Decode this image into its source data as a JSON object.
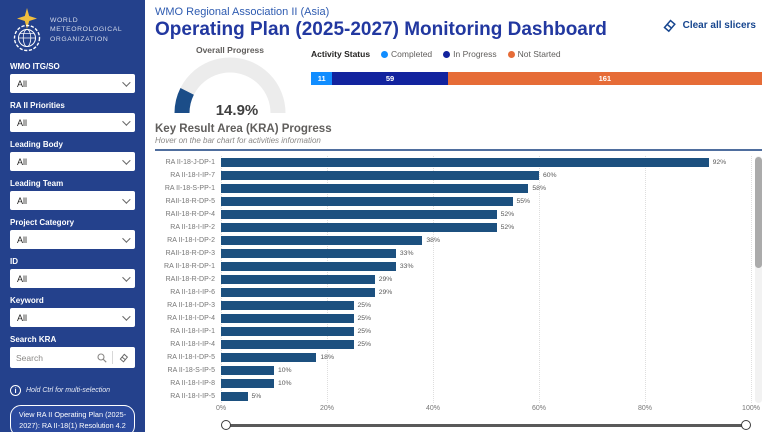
{
  "sidebar": {
    "logo_lines": [
      "WORLD",
      "METEOROLOGICAL",
      "ORGANIZATION"
    ],
    "filters": [
      {
        "label": "WMO ITG/SO",
        "value": "All"
      },
      {
        "label": "RA II Priorities",
        "value": "All"
      },
      {
        "label": "Leading Body",
        "value": "All"
      },
      {
        "label": "Leading Team",
        "value": "All"
      },
      {
        "label": "Project Category",
        "value": "All"
      },
      {
        "label": "ID",
        "value": "All"
      },
      {
        "label": "Keyword",
        "value": "All"
      }
    ],
    "search": {
      "label": "Search KRA",
      "placeholder": "Search"
    },
    "hint": "Hold Ctrl for multi-selection",
    "plan_button": "View RA II Operating Plan (2025-2027): RA II-18(1) Resolution 4.2"
  },
  "header": {
    "subtitle": "WMO Regional Association II (Asia)",
    "title": "Operating Plan (2025-2027) Monitoring Dashboard",
    "clear_slicers": "Clear all slicers"
  },
  "overall_progress": {
    "title": "Overall Progress",
    "value_label": "14.9%",
    "percent": 14.9
  },
  "activity_status": {
    "label": "Activity Status",
    "legend": [
      {
        "name": "Completed",
        "color": "#118DFF",
        "count": 11
      },
      {
        "name": "In Progress",
        "color": "#12239E",
        "count": 59
      },
      {
        "name": "Not Started",
        "color": "#E66C37",
        "count": 161
      }
    ]
  },
  "kra_section": {
    "title": "Key Result Area (KRA) Progress",
    "subtitle": "Hover on the bar chart for activities information"
  },
  "chart_data": {
    "type": "bar",
    "orientation": "horizontal",
    "title": "Key Result Area (KRA) Progress",
    "categories": [
      "RA II-18-J-DP-1",
      "RA II-18-I-IP-7",
      "RA II-18-S-PP-1",
      "RAII-18-R-DP-5",
      "RAII-18-R-DP-4",
      "RA II-18-I-IP-2",
      "RA II-18-I-DP-2",
      "RAII-18-R-DP-3",
      "RA II-18-R-DP-1",
      "RAII-18-R-DP-2",
      "RA II-18-I-IP-6",
      "RA II-18-I-DP-3",
      "RA II-18-I-DP-4",
      "RA II-18-I-IP-1",
      "RA II-18-I-IP-4",
      "RA II-18-I-DP-5",
      "RA II-18-S-IP-5",
      "RA II-18-I-IP-8",
      "RA II-18-I-IP-5"
    ],
    "values": [
      92,
      60,
      58,
      55,
      52,
      52,
      38,
      33,
      33,
      29,
      29,
      25,
      25,
      25,
      25,
      18,
      10,
      10,
      5
    ],
    "value_suffix": "%",
    "bar_color": "#1C507F",
    "xlim": [
      0,
      100
    ],
    "x_ticks": [
      "0%",
      "20%",
      "40%",
      "60%",
      "80%",
      "100%"
    ],
    "grid": "dotted-vertical",
    "legend_position": "none"
  }
}
